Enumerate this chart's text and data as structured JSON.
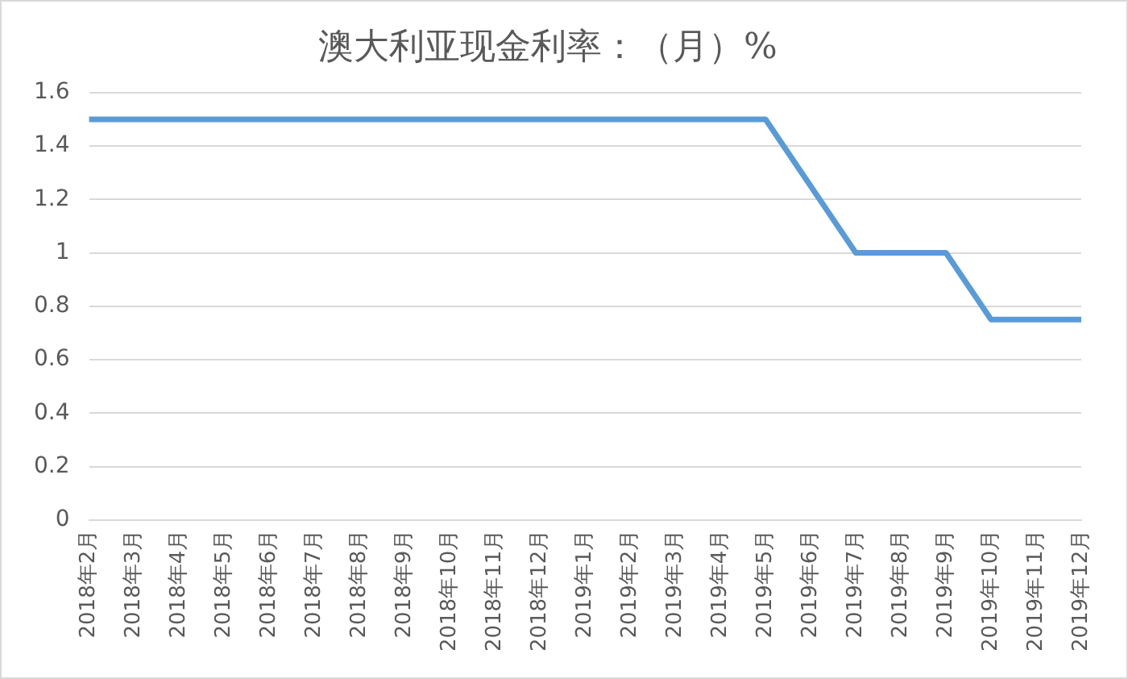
{
  "chart_data": {
    "type": "line",
    "title": "澳大利亚现金利率：（月）%",
    "categories": [
      "2018年2月",
      "2018年3月",
      "2018年4月",
      "2018年5月",
      "2018年6月",
      "2018年7月",
      "2018年8月",
      "2018年9月",
      "2018年10月",
      "2018年11月",
      "2018年12月",
      "2019年1月",
      "2019年2月",
      "2019年3月",
      "2019年4月",
      "2019年5月",
      "2019年6月",
      "2019年7月",
      "2019年8月",
      "2019年9月",
      "2019年10月",
      "2019年11月",
      "2019年12月"
    ],
    "series": [
      {
        "color": "#5b9bd5",
        "values": [
          1.5,
          1.5,
          1.5,
          1.5,
          1.5,
          1.5,
          1.5,
          1.5,
          1.5,
          1.5,
          1.5,
          1.5,
          1.5,
          1.5,
          1.5,
          1.5,
          1.25,
          1,
          1,
          1,
          0.75,
          0.75,
          0.75
        ]
      }
    ],
    "ylim": [
      0,
      1.6
    ],
    "yticks": [
      0,
      0.2,
      0.4,
      0.6,
      0.8,
      1,
      1.2,
      1.4,
      1.6
    ],
    "grid": "y",
    "legend": false,
    "marker": "none",
    "line_style": "solid"
  }
}
